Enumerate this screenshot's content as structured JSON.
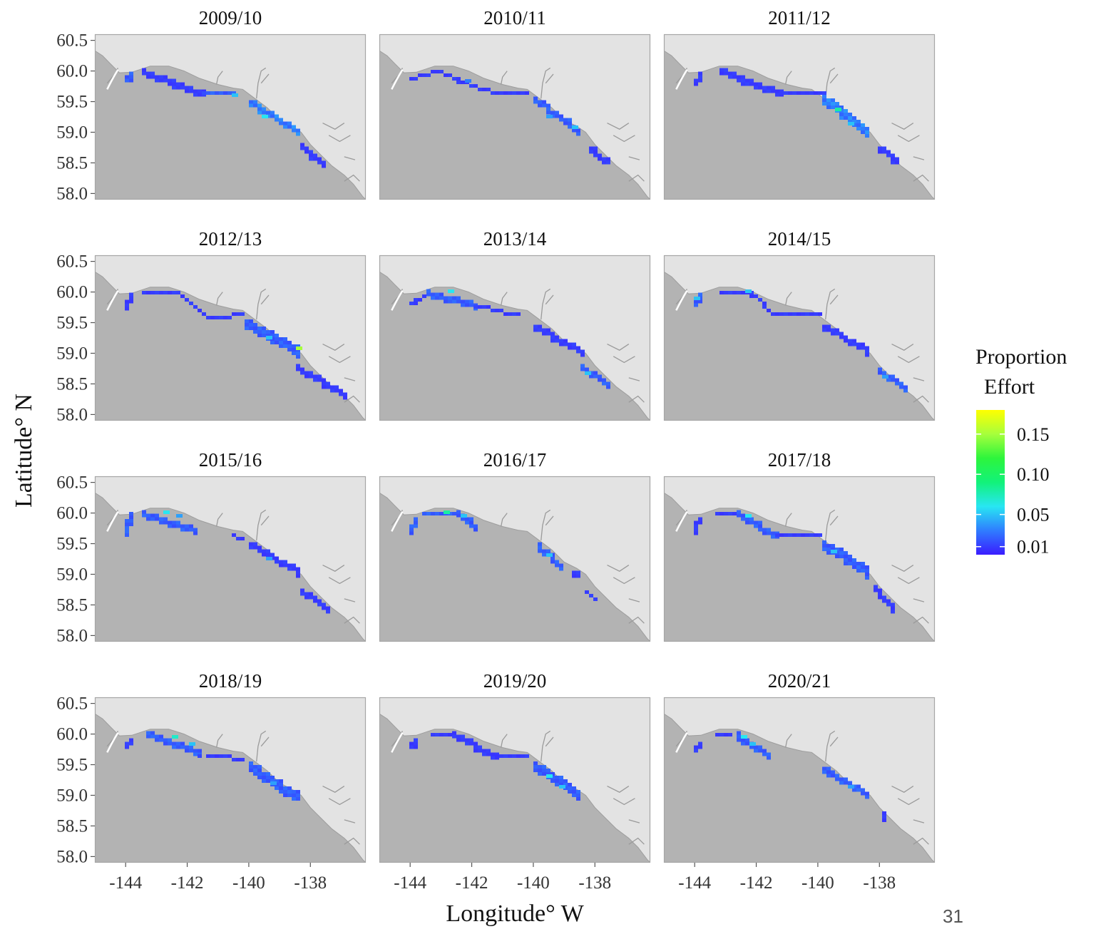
{
  "chart_data": {
    "type": "heatmap",
    "xlabel": "Longitude° W",
    "ylabel": "Latitude° N",
    "xlim": [
      -145,
      -136.2
    ],
    "ylim": [
      57.9,
      60.6
    ],
    "xticks": [
      -144,
      -142,
      -140,
      -138
    ],
    "xtick_labels": [
      "-144",
      "-142",
      "-140",
      "-138"
    ],
    "yticks": [
      58.0,
      58.5,
      59.0,
      59.5,
      60.0,
      60.5
    ],
    "ytick_labels": [
      "58.0",
      "58.5",
      "59.0",
      "59.5",
      "60.0",
      "60.5"
    ],
    "legend": {
      "title_lines": [
        "Proportion",
        "Effort"
      ],
      "position": "right",
      "ticks": [
        0.01,
        0.05,
        0.1,
        0.15
      ],
      "tick_labels": [
        "0.01",
        "0.05",
        "0.10",
        "0.15"
      ],
      "range": [
        0.0,
        0.18
      ],
      "colors": [
        "#3a1cff",
        "#2f7dff",
        "#28e6f2",
        "#12f27a",
        "#2df53c",
        "#a6ff3c",
        "#ffff00"
      ]
    },
    "panels": [
      {
        "title": "2009/10",
        "segments": [
          {
            "from": [
              -144.05,
              59.88
            ],
            "to": [
              -143.85,
              59.95
            ],
            "w": 0.14,
            "v": 0.02
          },
          {
            "from": [
              -143.5,
              60.0
            ],
            "to": [
              -141.5,
              59.65
            ],
            "w": 0.1,
            "v": 0.01
          },
          {
            "from": [
              -141.5,
              59.65
            ],
            "to": [
              -140.5,
              59.65
            ],
            "w": 0.07,
            "v": 0.02
          },
          {
            "from": [
              -140.0,
              59.5
            ],
            "to": [
              -138.5,
              59.05
            ],
            "w": 0.12,
            "v": 0.03
          },
          {
            "from": [
              -138.3,
              58.78
            ],
            "to": [
              -137.7,
              58.5
            ],
            "w": 0.1,
            "v": 0.01
          }
        ],
        "hotspots": [
          {
            "lon": -139.6,
            "lat": 59.28,
            "v": 0.06
          },
          {
            "lon": -140.6,
            "lat": 59.63,
            "v": 0.05
          }
        ]
      },
      {
        "title": "2010/11",
        "segments": [
          {
            "from": [
              -144.05,
              59.9
            ],
            "to": [
              -143.2,
              60.02
            ],
            "w": 0.06,
            "v": 0.01
          },
          {
            "from": [
              -143.2,
              60.02
            ],
            "to": [
              -141.3,
              59.65
            ],
            "w": 0.08,
            "v": 0.01
          },
          {
            "from": [
              -141.3,
              59.65
            ],
            "to": [
              -140.3,
              59.65
            ],
            "w": 0.06,
            "v": 0.01
          },
          {
            "from": [
              -140.0,
              59.55
            ],
            "to": [
              -138.6,
              59.05
            ],
            "w": 0.14,
            "v": 0.02
          },
          {
            "from": [
              -138.2,
              58.75
            ],
            "to": [
              -137.7,
              58.55
            ],
            "w": 0.1,
            "v": 0.01
          }
        ],
        "hotspots": [
          {
            "lon": -139.6,
            "lat": 59.28,
            "v": 0.04
          },
          {
            "lon": -138.7,
            "lat": 59.08,
            "v": 0.05
          },
          {
            "lon": -142.2,
            "lat": 59.85,
            "v": 0.03
          }
        ]
      },
      {
        "title": "2011/12",
        "segments": [
          {
            "from": [
              -144.05,
              59.82
            ],
            "to": [
              -143.85,
              59.95
            ],
            "w": 0.12,
            "v": 0.01
          },
          {
            "from": [
              -143.2,
              60.02
            ],
            "to": [
              -141.3,
              59.65
            ],
            "w": 0.09,
            "v": 0.01
          },
          {
            "from": [
              -141.3,
              59.65
            ],
            "to": [
              -139.8,
              59.65
            ],
            "w": 0.06,
            "v": 0.01
          },
          {
            "from": [
              -139.8,
              59.55
            ],
            "to": [
              -138.5,
              59.05
            ],
            "w": 0.18,
            "v": 0.03
          },
          {
            "from": [
              -138.0,
              58.75
            ],
            "to": [
              -137.5,
              58.55
            ],
            "w": 0.1,
            "v": 0.01
          }
        ],
        "hotspots": [
          {
            "lon": -139.4,
            "lat": 59.35,
            "v": 0.08
          },
          {
            "lon": -139.0,
            "lat": 59.15,
            "v": 0.05
          }
        ]
      },
      {
        "title": "2012/13",
        "segments": [
          {
            "from": [
              -144.05,
              59.8
            ],
            "to": [
              -143.85,
              59.95
            ],
            "w": 0.12,
            "v": 0.01
          },
          {
            "from": [
              -143.5,
              60.0
            ],
            "to": [
              -142.3,
              60.0
            ],
            "w": 0.07,
            "v": 0.01
          },
          {
            "from": [
              -142.3,
              60.0
            ],
            "to": [
              -141.4,
              59.62
            ],
            "w": 0.08,
            "v": 0.01
          },
          {
            "from": [
              -141.4,
              59.62
            ],
            "to": [
              -140.3,
              59.65
            ],
            "w": 0.06,
            "v": 0.01
          },
          {
            "from": [
              -140.1,
              59.5
            ],
            "to": [
              -138.4,
              59.05
            ],
            "w": 0.16,
            "v": 0.02
          },
          {
            "from": [
              -138.4,
              58.78
            ],
            "to": [
              -137.0,
              58.35
            ],
            "w": 0.1,
            "v": 0.01
          }
        ],
        "hotspots": [
          {
            "lon": -138.5,
            "lat": 59.08,
            "v": 0.15
          },
          {
            "lon": -139.4,
            "lat": 59.25,
            "v": 0.05
          }
        ]
      },
      {
        "title": "2013/14",
        "segments": [
          {
            "from": [
              -144.05,
              59.82
            ],
            "to": [
              -143.5,
              60.0
            ],
            "w": 0.06,
            "v": 0.01
          },
          {
            "from": [
              -143.5,
              60.0
            ],
            "to": [
              -142.0,
              59.8
            ],
            "w": 0.1,
            "v": 0.02
          },
          {
            "from": [
              -142.0,
              59.8
            ],
            "to": [
              -140.5,
              59.65
            ],
            "w": 0.07,
            "v": 0.01
          },
          {
            "from": [
              -140.0,
              59.45
            ],
            "to": [
              -138.5,
              59.05
            ],
            "w": 0.1,
            "v": 0.01
          },
          {
            "from": [
              -138.4,
              58.78
            ],
            "to": [
              -137.6,
              58.5
            ],
            "w": 0.12,
            "v": 0.02
          }
        ],
        "hotspots": [
          {
            "lon": -142.8,
            "lat": 60.0,
            "v": 0.06
          },
          {
            "lon": -138.3,
            "lat": 58.7,
            "v": 0.05
          }
        ]
      },
      {
        "title": "2014/15",
        "segments": [
          {
            "from": [
              -144.05,
              59.82
            ],
            "to": [
              -143.85,
              59.95
            ],
            "w": 0.14,
            "v": 0.02
          },
          {
            "from": [
              -143.2,
              60.02
            ],
            "to": [
              -142.2,
              60.0
            ],
            "w": 0.06,
            "v": 0.01
          },
          {
            "from": [
              -142.2,
              59.98
            ],
            "to": [
              -141.4,
              59.65
            ],
            "w": 0.07,
            "v": 0.01
          },
          {
            "from": [
              -141.4,
              59.65
            ],
            "to": [
              -140.0,
              59.65
            ],
            "w": 0.05,
            "v": 0.01
          },
          {
            "from": [
              -139.8,
              59.45
            ],
            "to": [
              -138.4,
              59.05
            ],
            "w": 0.09,
            "v": 0.01
          },
          {
            "from": [
              -138.1,
              58.75
            ],
            "to": [
              -137.2,
              58.45
            ],
            "w": 0.14,
            "v": 0.02
          }
        ],
        "hotspots": [
          {
            "lon": -144.0,
            "lat": 59.88,
            "v": 0.05
          },
          {
            "lon": -142.3,
            "lat": 60.02,
            "v": 0.05
          },
          {
            "lon": -137.9,
            "lat": 58.65,
            "v": 0.04
          }
        ]
      },
      {
        "title": "2015/16",
        "segments": [
          {
            "from": [
              -144.05,
              59.75
            ],
            "to": [
              -143.85,
              59.95
            ],
            "w": 0.16,
            "v": 0.02
          },
          {
            "from": [
              -143.5,
              60.0
            ],
            "to": [
              -141.8,
              59.75
            ],
            "w": 0.1,
            "v": 0.02
          },
          {
            "from": [
              -140.6,
              59.65
            ],
            "to": [
              -140.3,
              59.6
            ],
            "w": 0.06,
            "v": 0.01
          },
          {
            "from": [
              -140.0,
              59.5
            ],
            "to": [
              -138.4,
              59.05
            ],
            "w": 0.09,
            "v": 0.01
          },
          {
            "from": [
              -138.3,
              58.75
            ],
            "to": [
              -137.5,
              58.45
            ],
            "w": 0.1,
            "v": 0.01
          }
        ],
        "hotspots": [
          {
            "lon": -142.8,
            "lat": 60.02,
            "v": 0.06
          },
          {
            "lon": -142.3,
            "lat": 59.95,
            "v": 0.04
          },
          {
            "lon": -139.4,
            "lat": 59.25,
            "v": 0.04
          }
        ]
      },
      {
        "title": "2016/17",
        "segments": [
          {
            "from": [
              -144.05,
              59.75
            ],
            "to": [
              -143.85,
              59.92
            ],
            "w": 0.14,
            "v": 0.02
          },
          {
            "from": [
              -143.6,
              60.0
            ],
            "to": [
              -142.5,
              60.02
            ],
            "w": 0.08,
            "v": 0.02
          },
          {
            "from": [
              -142.5,
              60.0
            ],
            "to": [
              -141.9,
              59.8
            ],
            "w": 0.1,
            "v": 0.02
          },
          {
            "from": [
              -139.9,
              59.5
            ],
            "to": [
              -139.2,
              59.15
            ],
            "w": 0.12,
            "v": 0.02
          },
          {
            "from": [
              -138.8,
              59.05
            ],
            "to": [
              -138.6,
              59.05
            ],
            "w": 0.1,
            "v": 0.01
          },
          {
            "from": [
              -138.3,
              58.75
            ],
            "to": [
              -138.0,
              58.6
            ],
            "w": 0.08,
            "v": 0.01
          }
        ],
        "hotspots": [
          {
            "lon": -142.9,
            "lat": 60.02,
            "v": 0.08
          },
          {
            "lon": -142.3,
            "lat": 59.97,
            "v": 0.05
          },
          {
            "lon": -139.6,
            "lat": 59.3,
            "v": 0.05
          }
        ]
      },
      {
        "title": "2017/18",
        "segments": [
          {
            "from": [
              -144.0,
              59.75
            ],
            "to": [
              -143.95,
              59.88
            ],
            "w": 0.1,
            "v": 0.01
          },
          {
            "from": [
              -143.3,
              60.0
            ],
            "to": [
              -142.6,
              60.0
            ],
            "w": 0.05,
            "v": 0.01
          },
          {
            "from": [
              -142.6,
              60.0
            ],
            "to": [
              -141.4,
              59.65
            ],
            "w": 0.09,
            "v": 0.02
          },
          {
            "from": [
              -141.4,
              59.65
            ],
            "to": [
              -140.0,
              59.65
            ],
            "w": 0.06,
            "v": 0.01
          },
          {
            "from": [
              -139.8,
              59.5
            ],
            "to": [
              -138.4,
              59.05
            ],
            "w": 0.15,
            "v": 0.02
          },
          {
            "from": [
              -138.2,
              58.78
            ],
            "to": [
              -137.6,
              58.45
            ],
            "w": 0.1,
            "v": 0.01
          }
        ],
        "hotspots": [
          {
            "lon": -142.4,
            "lat": 59.98,
            "v": 0.06
          },
          {
            "lon": -139.6,
            "lat": 59.38,
            "v": 0.05
          }
        ]
      },
      {
        "title": "2018/19",
        "segments": [
          {
            "from": [
              -144.0,
              59.82
            ],
            "to": [
              -143.95,
              59.88
            ],
            "w": 0.12,
            "v": 0.01
          },
          {
            "from": [
              -143.3,
              60.02
            ],
            "to": [
              -141.6,
              59.7
            ],
            "w": 0.09,
            "v": 0.02
          },
          {
            "from": [
              -141.6,
              59.68
            ],
            "to": [
              -140.3,
              59.62
            ],
            "w": 0.05,
            "v": 0.01
          },
          {
            "from": [
              -140.0,
              59.5
            ],
            "to": [
              -138.5,
              59.0
            ],
            "w": 0.17,
            "v": 0.02
          }
        ],
        "hotspots": [
          {
            "lon": -142.5,
            "lat": 59.95,
            "v": 0.07
          },
          {
            "lon": -142.0,
            "lat": 59.82,
            "v": 0.05
          },
          {
            "lon": -139.3,
            "lat": 59.2,
            "v": 0.04
          }
        ]
      },
      {
        "title": "2019/20",
        "segments": [
          {
            "from": [
              -144.05,
              59.82
            ],
            "to": [
              -143.85,
              59.92
            ],
            "w": 0.1,
            "v": 0.01
          },
          {
            "from": [
              -143.4,
              60.02
            ],
            "to": [
              -142.6,
              60.02
            ],
            "w": 0.06,
            "v": 0.01
          },
          {
            "from": [
              -142.6,
              60.0
            ],
            "to": [
              -141.3,
              59.65
            ],
            "w": 0.1,
            "v": 0.01
          },
          {
            "from": [
              -141.3,
              59.65
            ],
            "to": [
              -140.3,
              59.65
            ],
            "w": 0.08,
            "v": 0.01
          },
          {
            "from": [
              -140.0,
              59.5
            ],
            "to": [
              -138.6,
              59.05
            ],
            "w": 0.15,
            "v": 0.02
          }
        ],
        "hotspots": [
          {
            "lon": -139.6,
            "lat": 59.3,
            "v": 0.06
          },
          {
            "lon": -139.2,
            "lat": 59.15,
            "v": 0.05
          }
        ]
      },
      {
        "title": "2020/21",
        "segments": [
          {
            "from": [
              -144.0,
              59.78
            ],
            "to": [
              -143.95,
              59.86
            ],
            "w": 0.1,
            "v": 0.01
          },
          {
            "from": [
              -143.3,
              60.02
            ],
            "to": [
              -142.7,
              60.02
            ],
            "w": 0.07,
            "v": 0.01
          },
          {
            "from": [
              -142.7,
              60.0
            ],
            "to": [
              -141.6,
              59.65
            ],
            "w": 0.1,
            "v": 0.02
          },
          {
            "from": [
              -139.9,
              59.45
            ],
            "to": [
              -138.5,
              59.05
            ],
            "w": 0.12,
            "v": 0.02
          },
          {
            "from": [
              -137.95,
              58.75
            ],
            "to": [
              -137.85,
              58.6
            ],
            "w": 0.08,
            "v": 0.01
          }
        ],
        "hotspots": [
          {
            "lon": -142.5,
            "lat": 59.95,
            "v": 0.06
          },
          {
            "lon": -142.2,
            "lat": 59.85,
            "v": 0.05
          },
          {
            "lon": -139.0,
            "lat": 59.12,
            "v": 0.04
          }
        ]
      }
    ]
  },
  "page_number": "31"
}
